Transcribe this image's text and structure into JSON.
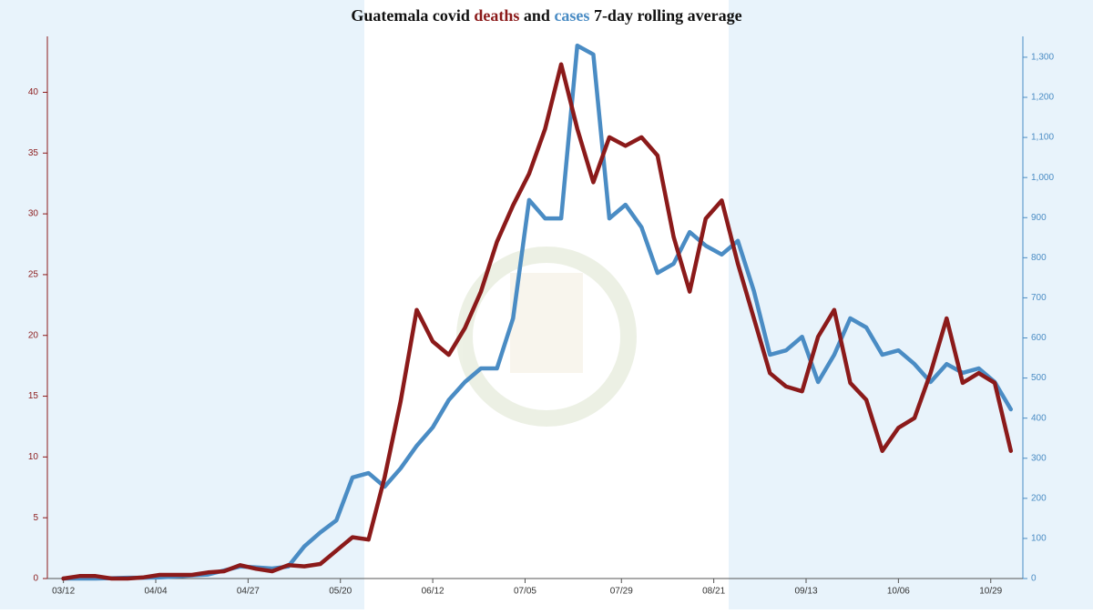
{
  "chart_data": {
    "type": "line",
    "title_parts": [
      "Guatemala covid ",
      "deaths",
      " and ",
      "cases",
      " 7-day rolling average"
    ],
    "x": [
      "03/12",
      "03/16",
      "03/20",
      "03/24",
      "03/28",
      "04/01",
      "04/05",
      "04/09",
      "04/13",
      "04/17",
      "04/21",
      "04/25",
      "04/29",
      "05/03",
      "05/07",
      "05/11",
      "05/15",
      "05/19",
      "05/23",
      "05/27",
      "05/31",
      "06/04",
      "06/08",
      "06/12",
      "06/16",
      "06/20",
      "06/24",
      "06/28",
      "07/02",
      "07/06",
      "07/10",
      "07/14",
      "07/18",
      "07/22",
      "07/26",
      "07/30",
      "08/03",
      "08/07",
      "08/11",
      "08/15",
      "08/19",
      "08/23",
      "08/27",
      "08/31",
      "09/04",
      "09/08",
      "09/12",
      "09/16",
      "09/20",
      "09/24",
      "09/28",
      "10/02",
      "10/06",
      "10/10",
      "10/14",
      "10/18",
      "10/22",
      "10/26",
      "10/30",
      "11/03"
    ],
    "xlim": [
      "03/08",
      "11/06"
    ],
    "xticks": [
      "03/12",
      "04/04",
      "04/27",
      "05/20",
      "06/12",
      "07/05",
      "07/29",
      "08/21",
      "09/13",
      "10/06",
      "10/29"
    ],
    "ylim": [
      0,
      44.6
    ],
    "yticks": [
      0,
      5,
      10,
      15,
      20,
      25,
      30,
      35,
      40
    ],
    "y2lim": [
      0,
      1352
    ],
    "y2ticks": [
      0,
      100,
      200,
      300,
      400,
      500,
      600,
      700,
      800,
      900,
      {
        "value": 1000,
        "label": "1,000"
      },
      {
        "value": 1100,
        "label": "1,100"
      },
      {
        "value": 1200,
        "label": "1,200"
      },
      {
        "value": 1300,
        "label": "1,300"
      }
    ],
    "series": [
      {
        "name": "deaths",
        "color": "#8b1a1a",
        "values": [
          0,
          0.2,
          0.2,
          0,
          0,
          0.1,
          0.3,
          0.3,
          0.3,
          0.5,
          0.6,
          1.1,
          0.8,
          0.6,
          1.1,
          1,
          1.2,
          2.3,
          3.4,
          3.2,
          8.3,
          14.6,
          22.1,
          19.5,
          18.4,
          20.6,
          23.6,
          27.7,
          30.7,
          33.3,
          37,
          42.3,
          37,
          32.6,
          36.3,
          35.6,
          36.3,
          34.8,
          28.1,
          23.6,
          29.6,
          31.1,
          25.9,
          21.4,
          16.9,
          15.8,
          15.4,
          19.9,
          22.1,
          16.1,
          14.7,
          10.5,
          12.4,
          13.2,
          16.9,
          21.4,
          16.1,
          16.9,
          16.1,
          10.5
        ]
      },
      {
        "name": "cases",
        "color": "#4a8cc4",
        "axis": "y2",
        "values": [
          0,
          0,
          0,
          1,
          2,
          2,
          3,
          5,
          8,
          10,
          20,
          30,
          28,
          25,
          30,
          80,
          115,
          145,
          252,
          263,
          229,
          275,
          331,
          377,
          445,
          490,
          524,
          524,
          649,
          944,
          898,
          898,
          1329,
          1307,
          898,
          932,
          876,
          762,
          785,
          864,
          830,
          808,
          842,
          717,
          558,
          569,
          603,
          490,
          558,
          649,
          626,
          558,
          569,
          535,
          490,
          535,
          513,
          524,
          490,
          422
        ]
      }
    ]
  }
}
